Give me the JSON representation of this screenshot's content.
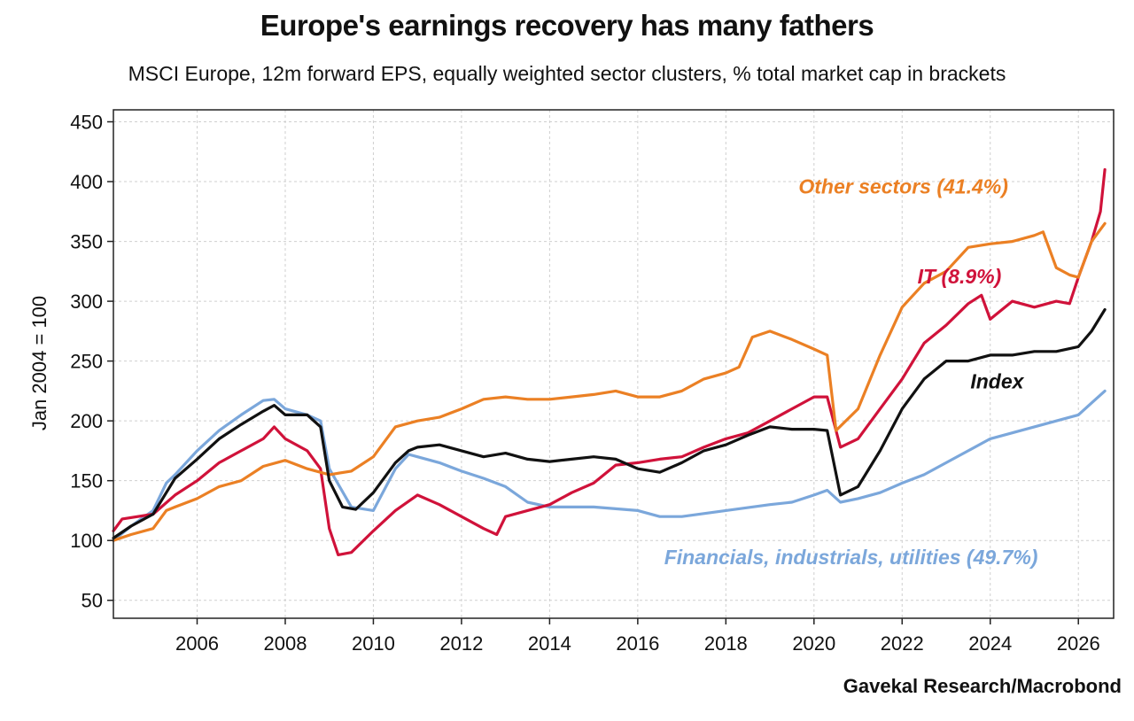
{
  "chart_data": {
    "type": "line",
    "title": "Europe's earnings recovery has many fathers",
    "subtitle": "MSCI Europe, 12m forward EPS, equally weighted sector clusters, % total market cap in brackets",
    "ylabel": "Jan 2004 = 100",
    "xlabel": "",
    "source": "Gavekal Research/Macrobond",
    "xlim": [
      2004.1,
      2026.8
    ],
    "ylim": [
      35,
      460
    ],
    "yticks": [
      50,
      100,
      150,
      200,
      250,
      300,
      350,
      400,
      450
    ],
    "xticks": [
      2006,
      2008,
      2010,
      2012,
      2014,
      2016,
      2018,
      2020,
      2022,
      2024,
      2026
    ],
    "grid": true,
    "legend": "inline labels",
    "series": [
      {
        "name": "Financials, industrials, utilities (49.7%)",
        "color": "#7ba7db",
        "x": [
          2004.1,
          2004.5,
          2005.0,
          2005.3,
          2005.5,
          2006.0,
          2006.5,
          2007.0,
          2007.5,
          2007.75,
          2008.0,
          2008.5,
          2008.8,
          2009.0,
          2009.5,
          2010.0,
          2010.5,
          2010.8,
          2011.0,
          2011.5,
          2012.0,
          2012.5,
          2013.0,
          2013.5,
          2014.0,
          2015.0,
          2016.0,
          2016.5,
          2017.0,
          2018.0,
          2019.0,
          2019.5,
          2020.0,
          2020.3,
          2020.6,
          2021.0,
          2021.5,
          2022.0,
          2022.5,
          2023.0,
          2023.5,
          2024.0,
          2024.5,
          2025.0,
          2025.5,
          2026.0,
          2026.3,
          2026.6
        ],
        "values": [
          100,
          112,
          125,
          148,
          155,
          175,
          192,
          205,
          217,
          218,
          210,
          205,
          200,
          160,
          128,
          125,
          160,
          172,
          170,
          165,
          158,
          152,
          145,
          132,
          128,
          128,
          125,
          120,
          120,
          125,
          130,
          132,
          138,
          142,
          132,
          135,
          140,
          148,
          155,
          165,
          175,
          185,
          190,
          195,
          200,
          205,
          215,
          225
        ]
      },
      {
        "name": "IT (8.9%)",
        "color": "#d0123a",
        "x": [
          2004.1,
          2004.3,
          2005.0,
          2005.5,
          2006.0,
          2006.5,
          2007.0,
          2007.5,
          2007.75,
          2008.0,
          2008.5,
          2008.8,
          2009.0,
          2009.2,
          2009.5,
          2010.0,
          2010.5,
          2011.0,
          2011.5,
          2012.0,
          2012.5,
          2012.8,
          2013.0,
          2013.5,
          2014.0,
          2014.5,
          2015.0,
          2015.5,
          2016.0,
          2016.5,
          2017.0,
          2017.5,
          2018.0,
          2018.5,
          2019.0,
          2019.5,
          2020.0,
          2020.3,
          2020.6,
          2021.0,
          2021.5,
          2022.0,
          2022.5,
          2023.0,
          2023.5,
          2023.8,
          2024.0,
          2024.5,
          2025.0,
          2025.5,
          2025.8,
          2026.0,
          2026.3,
          2026.5,
          2026.6
        ],
        "values": [
          108,
          118,
          122,
          138,
          150,
          165,
          175,
          185,
          195,
          185,
          175,
          160,
          110,
          88,
          90,
          108,
          125,
          138,
          130,
          120,
          110,
          105,
          120,
          125,
          130,
          140,
          148,
          163,
          165,
          168,
          170,
          178,
          185,
          190,
          200,
          210,
          220,
          220,
          178,
          185,
          210,
          235,
          265,
          280,
          298,
          305,
          285,
          300,
          295,
          300,
          298,
          320,
          350,
          375,
          410
        ]
      },
      {
        "name": "Other sectors (41.4%)",
        "color": "#eb8024",
        "x": [
          2004.1,
          2004.5,
          2005.0,
          2005.3,
          2005.5,
          2006.0,
          2006.5,
          2007.0,
          2007.5,
          2008.0,
          2008.5,
          2009.0,
          2009.5,
          2010.0,
          2010.5,
          2011.0,
          2011.5,
          2012.0,
          2012.5,
          2013.0,
          2013.5,
          2014.0,
          2014.5,
          2015.0,
          2015.5,
          2016.0,
          2016.5,
          2017.0,
          2017.5,
          2018.0,
          2018.3,
          2018.6,
          2019.0,
          2019.5,
          2020.0,
          2020.3,
          2020.5,
          2021.0,
          2021.5,
          2022.0,
          2022.5,
          2023.0,
          2023.5,
          2024.0,
          2024.5,
          2025.0,
          2025.2,
          2025.5,
          2025.8,
          2026.0,
          2026.3,
          2026.6
        ],
        "values": [
          100,
          105,
          110,
          125,
          128,
          135,
          145,
          150,
          162,
          167,
          160,
          155,
          158,
          170,
          195,
          200,
          203,
          210,
          218,
          220,
          218,
          218,
          220,
          222,
          225,
          220,
          220,
          225,
          235,
          240,
          245,
          270,
          275,
          268,
          260,
          255,
          192,
          210,
          255,
          295,
          315,
          325,
          345,
          348,
          350,
          355,
          358,
          328,
          322,
          320,
          350,
          365
        ]
      },
      {
        "name": "Index",
        "color": "#111111",
        "x": [
          2004.1,
          2004.5,
          2005.0,
          2005.3,
          2005.5,
          2006.0,
          2006.5,
          2007.0,
          2007.5,
          2007.75,
          2008.0,
          2008.5,
          2008.8,
          2009.0,
          2009.3,
          2009.6,
          2010.0,
          2010.5,
          2010.8,
          2011.0,
          2011.5,
          2012.0,
          2012.5,
          2013.0,
          2013.5,
          2014.0,
          2014.5,
          2015.0,
          2015.5,
          2016.0,
          2016.5,
          2017.0,
          2017.5,
          2018.0,
          2018.5,
          2019.0,
          2019.5,
          2020.0,
          2020.3,
          2020.6,
          2021.0,
          2021.5,
          2022.0,
          2022.5,
          2023.0,
          2023.5,
          2024.0,
          2024.5,
          2025.0,
          2025.5,
          2026.0,
          2026.3,
          2026.6
        ],
        "values": [
          102,
          112,
          122,
          140,
          152,
          168,
          185,
          197,
          208,
          213,
          205,
          205,
          195,
          150,
          128,
          126,
          140,
          165,
          175,
          178,
          180,
          175,
          170,
          173,
          168,
          166,
          168,
          170,
          168,
          160,
          157,
          165,
          175,
          180,
          188,
          195,
          193,
          193,
          192,
          138,
          145,
          175,
          210,
          235,
          250,
          250,
          255,
          255,
          258,
          258,
          262,
          275,
          293
        ]
      }
    ],
    "annotations": [
      {
        "text": "Other sectors (41.4%)",
        "series": "Other sectors (41.4%)",
        "x": 2019.65,
        "y": 390,
        "color": "#eb8024"
      },
      {
        "text": "IT (8.9%)",
        "series": "IT (8.9%)",
        "x": 2022.35,
        "y": 315,
        "color": "#d0123a"
      },
      {
        "text": "Index",
        "series": "Index",
        "x": 2023.55,
        "y": 227,
        "color": "#111111"
      },
      {
        "text": "Financials, industrials, utilities (49.7%)",
        "series": "Financials, industrials, utilities (49.7%)",
        "x": 2016.6,
        "y": 80,
        "color": "#7ba7db"
      }
    ]
  }
}
